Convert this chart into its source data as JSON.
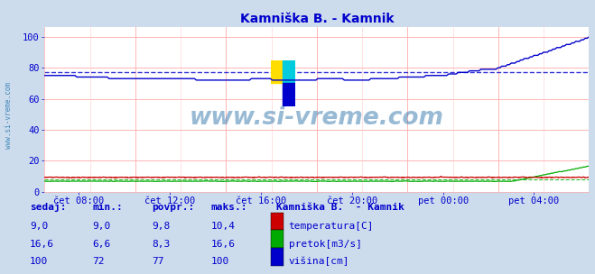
{
  "title": "Kamniška B. - Kamnik",
  "title_color": "#0000cc",
  "bg_color": "#ccdcec",
  "plot_bg_color": "#ffffff",
  "grid_color_major": "#ffaaaa",
  "grid_color_minor": "#ffcccc",
  "ylabel_ticks": [
    0,
    20,
    40,
    60,
    80,
    100
  ],
  "ylim": [
    0,
    106
  ],
  "x_tick_labels": [
    "čet 08:00",
    "čet 12:00",
    "čet 16:00",
    "čet 20:00",
    "pet 00:00",
    "pet 04:00"
  ],
  "n_points": 288,
  "temp_color": "#cc0000",
  "pretok_color": "#00aa00",
  "visina_color": "#0000cc",
  "temp_avg": 9.8,
  "pretok_avg": 8.3,
  "visina_avg": 77,
  "watermark": "www.si-vreme.com",
  "watermark_color": "#3377aa",
  "sidebar_text": "www.si-vreme.com",
  "sidebar_color": "#4488bb",
  "legend_title": "Kamniška B.  - Kamnik",
  "legend_items": [
    "temperatura[C]",
    "pretok[m3/s]",
    "višina[cm]"
  ],
  "legend_colors": [
    "#cc0000",
    "#00aa00",
    "#0000cc"
  ],
  "table_headers": [
    "sedaj:",
    "min.:",
    "povpr.:",
    "maks.:"
  ],
  "table_data": [
    [
      "9,0",
      "9,0",
      "9,8",
      "10,4"
    ],
    [
      "16,6",
      "6,6",
      "8,3",
      "16,6"
    ],
    [
      "100",
      "72",
      "77",
      "100"
    ]
  ],
  "table_color": "#0000cc"
}
